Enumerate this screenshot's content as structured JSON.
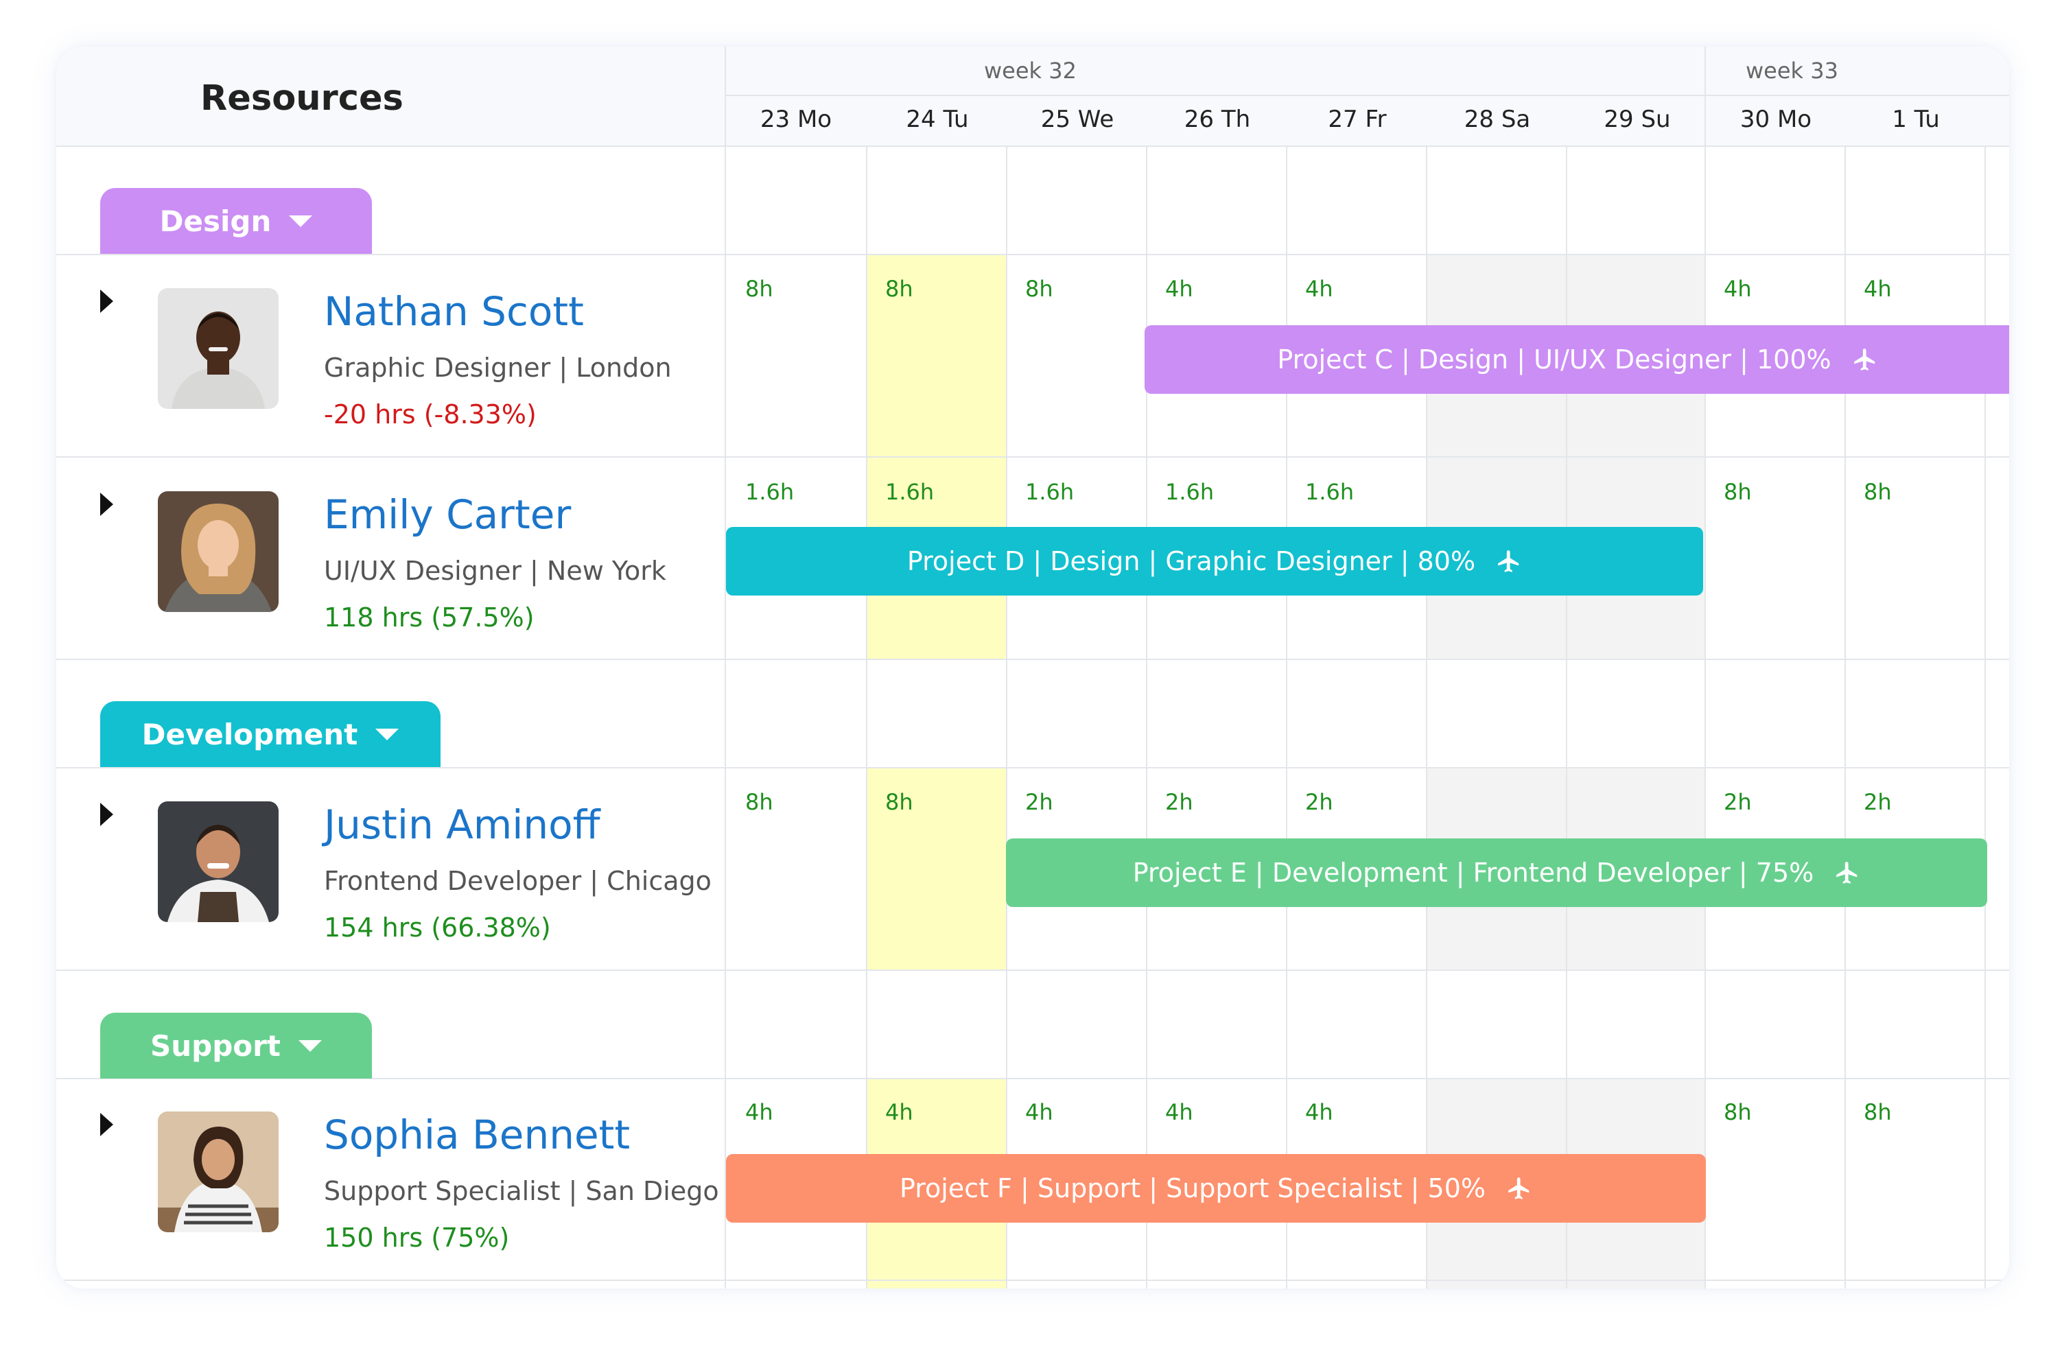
{
  "header": {
    "resources_title": "Resources",
    "weeks": [
      "week 32",
      "week 33"
    ],
    "days": [
      "23 Mo",
      "24 Tu",
      "25 We",
      "26 Th",
      "27 Fr",
      "28 Sa",
      "29 Su",
      "30 Mo",
      "1 Tu"
    ]
  },
  "groups": [
    {
      "label": "Design",
      "color": "#cb8ef4"
    },
    {
      "label": "Development",
      "color": "#13c0cf"
    },
    {
      "label": "Support",
      "color": "#68d08f"
    }
  ],
  "resources": [
    {
      "name": "Nathan Scott",
      "role": "Graphic Designer | London",
      "utilization": "-20 hrs (-8.33%)",
      "utilization_color": "#d11a1a",
      "hours": [
        "8h",
        "8h",
        "8h",
        "4h",
        "4h",
        "",
        "",
        "4h",
        "4h"
      ],
      "project": {
        "label": "Project C |  Design | UI/UX Designer | 100%",
        "color": "#cb8ef4"
      }
    },
    {
      "name": "Emily Carter",
      "role": "UI/UX Designer | New York",
      "utilization": "118 hrs (57.5%)",
      "utilization_color": "#1e8e1e",
      "hours": [
        "1.6h",
        "1.6h",
        "1.6h",
        "1.6h",
        "1.6h",
        "",
        "",
        "8h",
        "8h"
      ],
      "project": {
        "label": "Project D |  Design | Graphic Designer | 80%",
        "color": "#13c0cf"
      }
    },
    {
      "name": "Justin Aminoff",
      "role": "Frontend Developer | Chicago",
      "utilization": "154 hrs (66.38%)",
      "utilization_color": "#1e8e1e",
      "hours": [
        "8h",
        "8h",
        "2h",
        "2h",
        "2h",
        "",
        "",
        "2h",
        "2h"
      ],
      "project": {
        "label": "Project E |  Development  | Frontend Developer | 75%",
        "color": "#68d08f"
      }
    },
    {
      "name": "Sophia Bennett",
      "role": "Support Specialist | San Diego",
      "utilization": "150 hrs (75%)",
      "utilization_color": "#1e8e1e",
      "hours": [
        "4h",
        "4h",
        "4h",
        "4h",
        "4h",
        "",
        "",
        "8h",
        "8h"
      ],
      "project": {
        "label": "Project F | Support | Support Specialist | 50%",
        "color": "#fd906d"
      }
    }
  ]
}
